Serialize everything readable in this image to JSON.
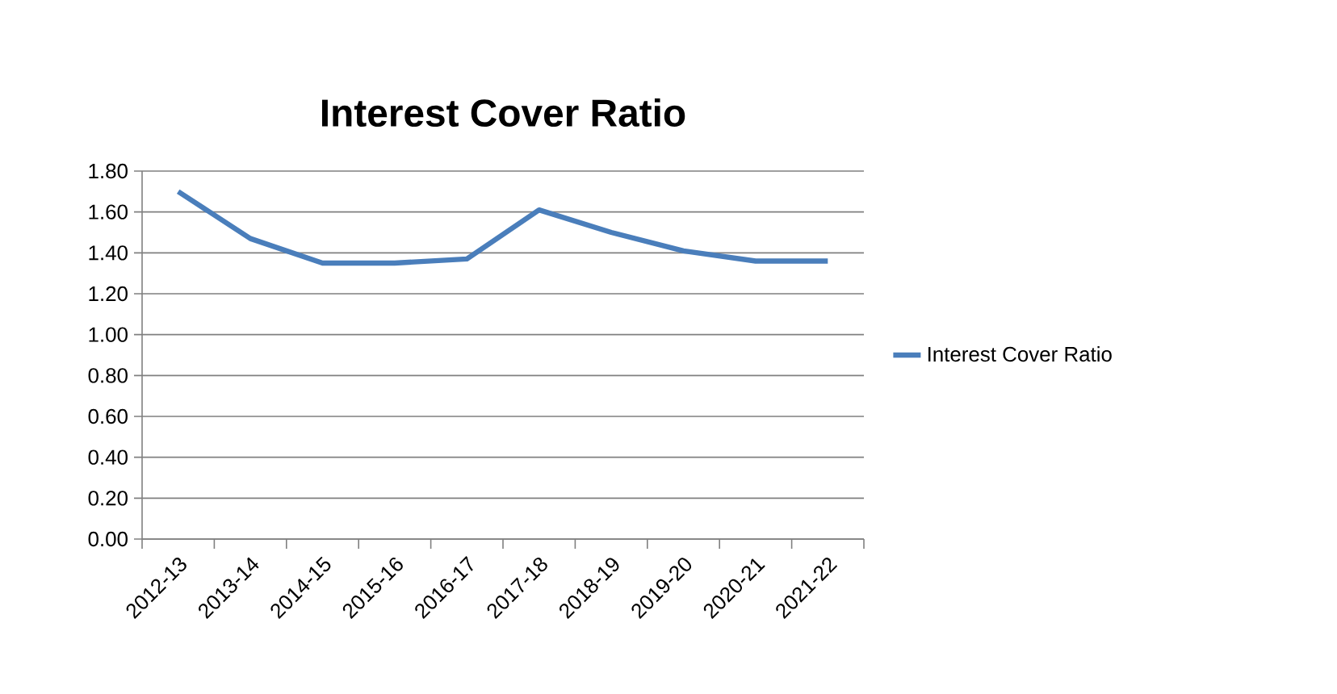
{
  "chart_data": {
    "type": "line",
    "title": "Interest Cover Ratio",
    "categories": [
      "2012-13",
      "2013-14",
      "2014-15",
      "2015-16",
      "2016-17",
      "2017-18",
      "2018-19",
      "2019-20",
      "2020-21",
      "2021-22"
    ],
    "series": [
      {
        "name": "Interest Cover Ratio",
        "color": "#4a7ebb",
        "values": [
          1.7,
          1.47,
          1.35,
          1.35,
          1.37,
          1.61,
          1.5,
          1.41,
          1.36,
          1.36
        ]
      }
    ],
    "ylim": [
      0,
      1.8
    ],
    "yticks": [
      {
        "value": 0,
        "label": "0.00"
      },
      {
        "value": 0.2,
        "label": "0.20"
      },
      {
        "value": 0.4,
        "label": "0.40"
      },
      {
        "value": 0.6,
        "label": "0.60"
      },
      {
        "value": 0.8,
        "label": "0.80"
      },
      {
        "value": 1.0,
        "label": "1.00"
      },
      {
        "value": 1.2,
        "label": "1.20"
      },
      {
        "value": 1.4,
        "label": "1.40"
      },
      {
        "value": 1.6,
        "label": "1.60"
      },
      {
        "value": 1.8,
        "label": "1.80"
      }
    ],
    "grid": "y",
    "legend": "right",
    "marker": "none",
    "line_style": "solid"
  }
}
